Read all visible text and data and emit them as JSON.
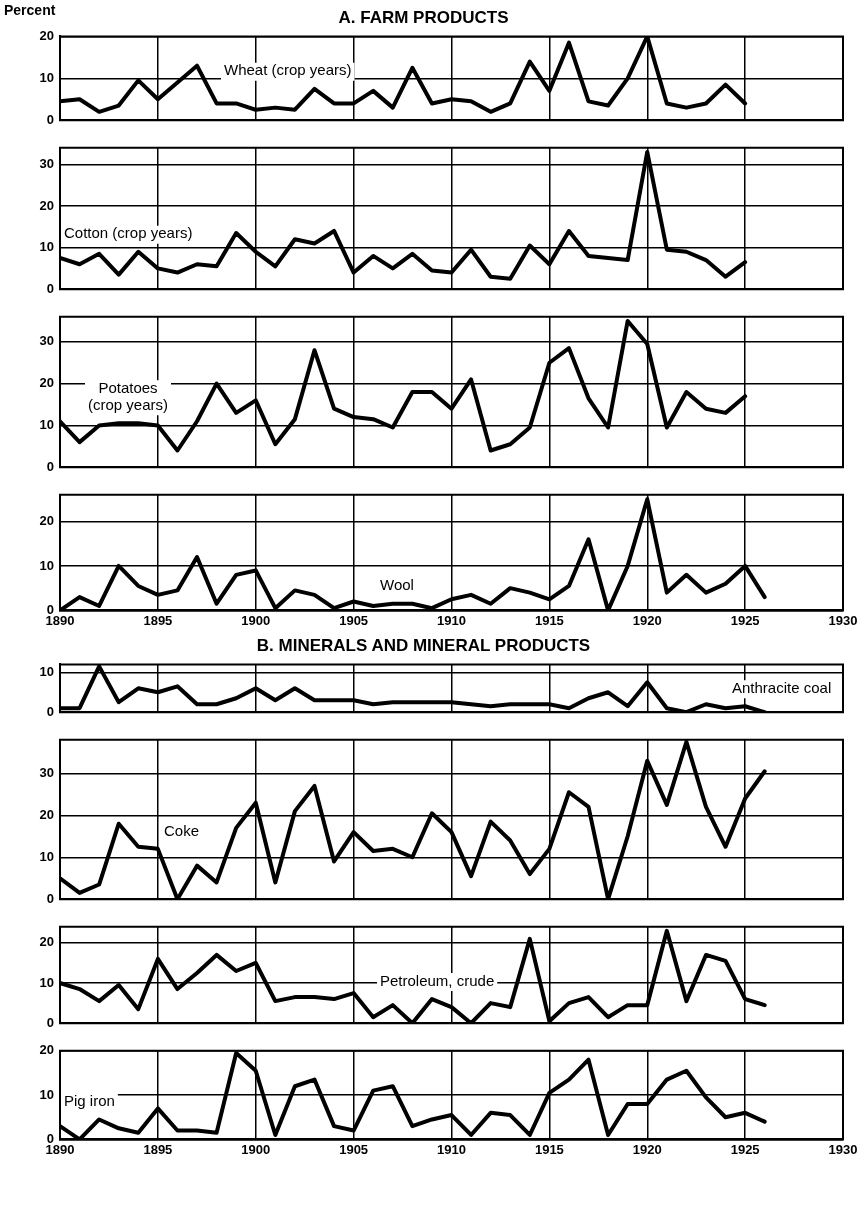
{
  "chart_data": [
    {
      "type": "line",
      "title": "A. FARM PRODUCTS",
      "ylabel": "Percent",
      "x": [
        1890,
        1891,
        1892,
        1893,
        1894,
        1895,
        1896,
        1897,
        1898,
        1899,
        1900,
        1901,
        1902,
        1903,
        1904,
        1905,
        1906,
        1907,
        1908,
        1909,
        1910,
        1911,
        1912,
        1913,
        1914,
        1915,
        1916,
        1917,
        1918,
        1919,
        1920,
        1921,
        1922,
        1923,
        1924,
        1925
      ],
      "series": [
        {
          "name": "Wheat (crop years)",
          "color": "#000000",
          "values": [
            4.5,
            5,
            2,
            3.5,
            9.5,
            5,
            9,
            13,
            4,
            4,
            2.5,
            3,
            2.5,
            7.5,
            4,
            4,
            7,
            3,
            12.5,
            4,
            5,
            4.5,
            2,
            4,
            14,
            7,
            18.5,
            4.5,
            3.5,
            10,
            20,
            4,
            3,
            4,
            8.5,
            4
          ]
        }
      ],
      "xlim": [
        1890,
        1930
      ],
      "xticks": [
        1890,
        1895,
        1900,
        1905,
        1910,
        1915,
        1920,
        1925,
        1930
      ],
      "ylim": [
        0,
        20
      ],
      "yticks": [
        0,
        10,
        20
      ],
      "grid": true,
      "tick_labels": "y",
      "marker": "none"
    },
    {
      "type": "line",
      "x": [
        1890,
        1891,
        1892,
        1893,
        1894,
        1895,
        1896,
        1897,
        1898,
        1899,
        1900,
        1901,
        1902,
        1903,
        1904,
        1905,
        1906,
        1907,
        1908,
        1909,
        1910,
        1911,
        1912,
        1913,
        1914,
        1915,
        1916,
        1917,
        1918,
        1919,
        1920,
        1921,
        1922,
        1923,
        1924,
        1925
      ],
      "series": [
        {
          "name": "Cotton (crop years)",
          "color": "#000000",
          "values": [
            7.5,
            6,
            8.5,
            3.5,
            9,
            5,
            4,
            6,
            5.5,
            13.5,
            9,
            5.5,
            12,
            11,
            14,
            4,
            8,
            5,
            8.5,
            4.5,
            4,
            9.5,
            3,
            2.5,
            10.5,
            6,
            14,
            8,
            7.5,
            7,
            33,
            9.5,
            9,
            7,
            3,
            6.5
          ]
        }
      ],
      "xlim": [
        1890,
        1930
      ],
      "xticks": [
        1890,
        1895,
        1900,
        1905,
        1910,
        1915,
        1920,
        1925,
        1930
      ],
      "ylim": [
        0,
        34
      ],
      "yticks": [
        0,
        10,
        20,
        30
      ],
      "grid": true,
      "tick_labels": "y",
      "marker": "none"
    },
    {
      "type": "line",
      "x": [
        1890,
        1891,
        1892,
        1893,
        1894,
        1895,
        1896,
        1897,
        1898,
        1899,
        1900,
        1901,
        1902,
        1903,
        1904,
        1905,
        1906,
        1907,
        1908,
        1909,
        1910,
        1911,
        1912,
        1913,
        1914,
        1915,
        1916,
        1917,
        1918,
        1919,
        1920,
        1921,
        1922,
        1923,
        1924,
        1925
      ],
      "series": [
        {
          "name": "Potatoes\n(crop years)",
          "color": "#000000",
          "values": [
            11,
            6,
            10,
            10.5,
            10.5,
            10,
            4,
            11,
            20,
            13,
            16,
            5.5,
            11.5,
            28,
            14,
            12,
            11.5,
            9.5,
            18,
            18,
            14,
            21,
            4,
            5.5,
            9.5,
            25,
            28.5,
            16.5,
            9.5,
            35,
            29.5,
            9.5,
            18,
            14,
            13,
            17
          ]
        }
      ],
      "xlim": [
        1890,
        1930
      ],
      "xticks": [
        1890,
        1895,
        1900,
        1905,
        1910,
        1915,
        1920,
        1925,
        1930
      ],
      "ylim": [
        0,
        36
      ],
      "yticks": [
        0,
        10,
        20,
        30
      ],
      "grid": true,
      "tick_labels": "y",
      "marker": "none"
    },
    {
      "type": "line",
      "x": [
        1890,
        1891,
        1892,
        1893,
        1894,
        1895,
        1896,
        1897,
        1898,
        1899,
        1900,
        1901,
        1902,
        1903,
        1904,
        1905,
        1906,
        1907,
        1908,
        1909,
        1910,
        1911,
        1912,
        1913,
        1914,
        1915,
        1916,
        1917,
        1918,
        1919,
        1920,
        1921,
        1922,
        1923,
        1924,
        1925,
        1926
      ],
      "series": [
        {
          "name": "Wool",
          "color": "#000000",
          "values": [
            0,
            3,
            1,
            10,
            5.5,
            3.5,
            4.5,
            12,
            1.5,
            8,
            9,
            0.5,
            4.5,
            3.5,
            0.5,
            2,
            1,
            1.5,
            1.5,
            0.5,
            2.5,
            3.5,
            1.5,
            5,
            4,
            2.5,
            5.5,
            16,
            0,
            10,
            25,
            4,
            8,
            4,
            6,
            10,
            3
          ]
        }
      ],
      "xlim": [
        1890,
        1930
      ],
      "xticks": [
        1890,
        1895,
        1900,
        1905,
        1910,
        1915,
        1920,
        1925,
        1930
      ],
      "ylim": [
        0,
        26
      ],
      "yticks": [
        0,
        10,
        20
      ],
      "grid": true,
      "marker": "none"
    },
    {
      "type": "line",
      "title": "B. MINERALS AND MINERAL PRODUCTS",
      "x": [
        1890,
        1891,
        1892,
        1893,
        1894,
        1895,
        1896,
        1897,
        1898,
        1899,
        1900,
        1901,
        1902,
        1903,
        1904,
        1905,
        1906,
        1907,
        1908,
        1909,
        1910,
        1911,
        1912,
        1913,
        1914,
        1915,
        1916,
        1917,
        1918,
        1919,
        1920,
        1921,
        1922,
        1923,
        1924,
        1925,
        1926
      ],
      "series": [
        {
          "name": "Anthracite coal",
          "color": "#000000",
          "values": [
            1,
            1,
            11.5,
            2.5,
            6,
            5,
            6.5,
            2,
            2,
            3.5,
            6,
            3,
            6,
            3,
            3,
            3,
            2,
            2.5,
            2.5,
            2.5,
            2.5,
            2,
            1.5,
            2,
            2,
            2,
            1,
            3.5,
            5,
            1.5,
            7.5,
            1,
            0,
            2,
            1,
            1.5,
            0
          ]
        }
      ],
      "xlim": [
        1890,
        1930
      ],
      "xticks": [
        1890,
        1895,
        1900,
        1905,
        1910,
        1915,
        1920,
        1925,
        1930
      ],
      "ylim": [
        0,
        12
      ],
      "yticks": [
        0,
        10
      ],
      "grid": true,
      "tick_labels": "y",
      "marker": "none"
    },
    {
      "type": "line",
      "x": [
        1890,
        1891,
        1892,
        1893,
        1894,
        1895,
        1896,
        1897,
        1898,
        1899,
        1900,
        1901,
        1902,
        1903,
        1904,
        1905,
        1906,
        1907,
        1908,
        1909,
        1910,
        1911,
        1912,
        1913,
        1914,
        1915,
        1916,
        1917,
        1918,
        1919,
        1920,
        1921,
        1922,
        1923,
        1924,
        1925,
        1926
      ],
      "series": [
        {
          "name": "Coke",
          "color": "#000000",
          "values": [
            5,
            1.5,
            3.5,
            18,
            12.5,
            12,
            0,
            8,
            4,
            17,
            23,
            4,
            21,
            27,
            9,
            16,
            11.5,
            12,
            10,
            20.5,
            16,
            5.5,
            18.5,
            14,
            6,
            12,
            25.5,
            22,
            0,
            15,
            33,
            22.5,
            37.5,
            22,
            12.5,
            24,
            30.5
          ]
        }
      ],
      "xlim": [
        1890,
        1930
      ],
      "xticks": [
        1890,
        1895,
        1900,
        1905,
        1910,
        1915,
        1920,
        1925,
        1930
      ],
      "ylim": [
        0,
        38
      ],
      "yticks": [
        0,
        10,
        20,
        30
      ],
      "grid": true,
      "tick_labels": "y",
      "marker": "none"
    },
    {
      "type": "line",
      "x": [
        1890,
        1891,
        1892,
        1893,
        1894,
        1895,
        1896,
        1897,
        1898,
        1899,
        1900,
        1901,
        1902,
        1903,
        1904,
        1905,
        1906,
        1907,
        1908,
        1909,
        1910,
        1911,
        1912,
        1913,
        1914,
        1915,
        1916,
        1917,
        1918,
        1919,
        1920,
        1921,
        1922,
        1923,
        1924,
        1925,
        1926
      ],
      "series": [
        {
          "name": "Petroleum, crude",
          "color": "#000000",
          "values": [
            10,
            8.5,
            5.5,
            9.5,
            3.5,
            16,
            8.5,
            12.5,
            17,
            13,
            15,
            5.5,
            6.5,
            6.5,
            6,
            7.5,
            1.5,
            4.5,
            0,
            6,
            4,
            0,
            5,
            4,
            21,
            0.5,
            5,
            6.5,
            1.5,
            4.5,
            4.5,
            23,
            5.5,
            17,
            15.5,
            6,
            4.5
          ]
        }
      ],
      "xlim": [
        1890,
        1930
      ],
      "xticks": [
        1890,
        1895,
        1900,
        1905,
        1910,
        1915,
        1920,
        1925,
        1930
      ],
      "ylim": [
        0,
        24
      ],
      "yticks": [
        0,
        10,
        20
      ],
      "grid": true,
      "tick_labels": "y",
      "marker": "none"
    },
    {
      "type": "line",
      "x": [
        1890,
        1891,
        1892,
        1893,
        1894,
        1895,
        1896,
        1897,
        1898,
        1899,
        1900,
        1901,
        1902,
        1903,
        1904,
        1905,
        1906,
        1907,
        1908,
        1909,
        1910,
        1911,
        1912,
        1913,
        1914,
        1915,
        1916,
        1917,
        1918,
        1919,
        1920,
        1921,
        1922,
        1923,
        1924,
        1925,
        1926
      ],
      "series": [
        {
          "name": "Pig iron",
          "color": "#000000",
          "values": [
            3,
            0,
            4.5,
            2.5,
            1.5,
            7,
            2,
            2,
            1.5,
            19.5,
            15.5,
            1,
            12,
            13.5,
            3,
            2,
            11,
            12,
            3,
            4.5,
            5.5,
            1,
            6,
            5.5,
            1,
            10.5,
            13.5,
            18,
            1,
            8,
            8,
            13.5,
            15.5,
            9.5,
            5,
            6,
            4
          ]
        }
      ],
      "xlim": [
        1890,
        1930
      ],
      "xticks": [
        1890,
        1895,
        1900,
        1905,
        1910,
        1915,
        1920,
        1925,
        1930
      ],
      "ylim": [
        0,
        20
      ],
      "yticks": [
        0,
        10,
        20
      ],
      "grid": true,
      "marker": "none"
    }
  ]
}
